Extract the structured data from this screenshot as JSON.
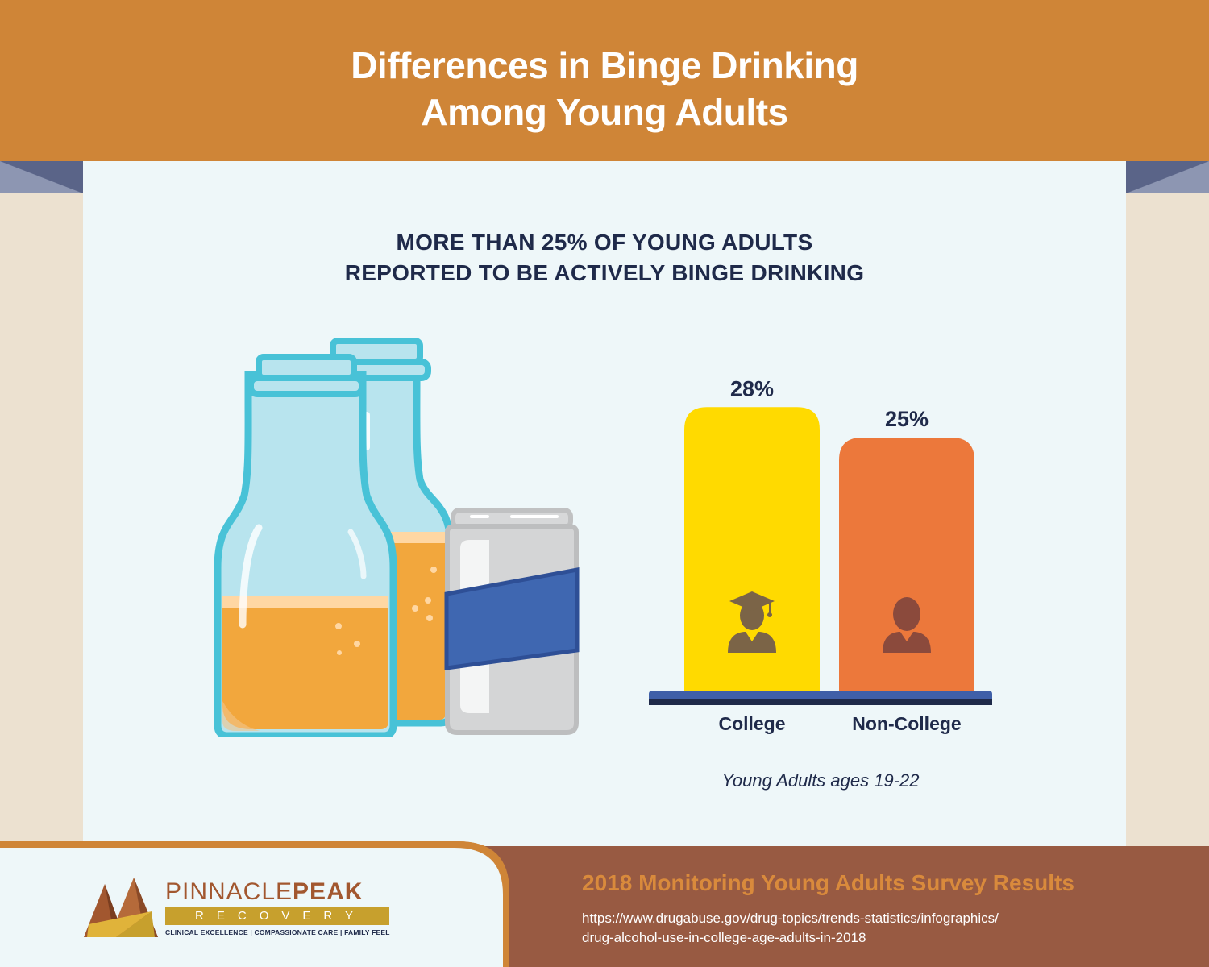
{
  "header": {
    "title_line1": "Differences in Binge Drinking",
    "title_line2": "Among Young Adults"
  },
  "subtitle": {
    "line1": "MORE THAN 25% OF YOUNG ADULTS",
    "line2": "REPORTED TO BE ACTIVELY BINGE DRINKING"
  },
  "icons": {
    "bottle_left": "beer-bottle-icon",
    "bottle_right": "beer-bottle-icon",
    "can": "soda-can-icon",
    "college": "graduate-cap-person-icon",
    "non_college": "person-icon"
  },
  "chart_data": {
    "type": "bar",
    "categories": [
      "College",
      "Non-College"
    ],
    "values": [
      28,
      25
    ],
    "data_labels": [
      "28%",
      "25%"
    ],
    "unit": "%",
    "colors": [
      "#ffda00",
      "#ec783b"
    ],
    "ylim": [
      0,
      30
    ],
    "grid": false,
    "legend": "none",
    "caption": "Young Adults ages 19-22"
  },
  "footer": {
    "brand_name_light": "PINNACLE",
    "brand_name_bold": "PEAK",
    "brand_sub": "RECOVERY",
    "brand_tagline": "CLINICAL EXCELLENCE | COMPASSIONATE CARE | FAMILY FEEL",
    "survey_title": "2018 Monitoring Young Adults Survey Results",
    "source_line1": "https://www.drugabuse.gov/drug-topics/trends-statistics/infographics/",
    "source_line2": "drug-alcohol-use-in-college-age-adults-in-2018"
  },
  "colors": {
    "header_bg": "#cf8537",
    "panel_bg": "#eef7f9",
    "side_bg": "#ece1d0",
    "navy": "#1f2a4a",
    "footer_bg": "#985a42",
    "footer_accent": "#d98a3c",
    "can_band": "#3f67b1"
  }
}
